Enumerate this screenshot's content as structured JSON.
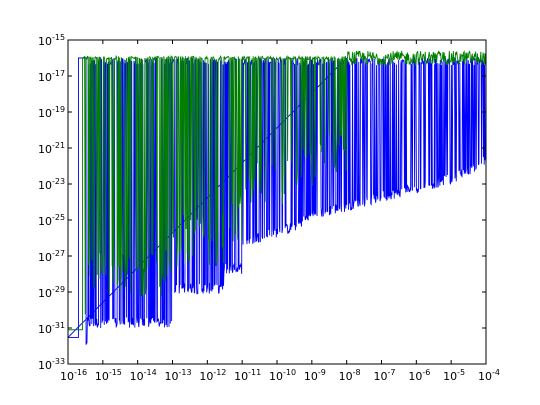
{
  "chart_data": {
    "type": "line",
    "title": "",
    "xlabel": "",
    "ylabel": "",
    "x_scale": "log",
    "y_scale": "log",
    "xlim": [
      1e-16,
      0.0001
    ],
    "ylim": [
      1e-33,
      1e-15
    ],
    "grid": false,
    "legend": "none",
    "x_ticks": [
      {
        "base": "10",
        "exp": "-16",
        "value": 1e-16
      },
      {
        "base": "10",
        "exp": "-15",
        "value": 1e-15
      },
      {
        "base": "10",
        "exp": "-14",
        "value": 1e-14
      },
      {
        "base": "10",
        "exp": "-13",
        "value": 1e-13
      },
      {
        "base": "10",
        "exp": "-12",
        "value": 1e-12
      },
      {
        "base": "10",
        "exp": "-11",
        "value": 1e-11
      },
      {
        "base": "10",
        "exp": "-10",
        "value": 1e-10
      },
      {
        "base": "10",
        "exp": "-9",
        "value": 1e-09
      },
      {
        "base": "10",
        "exp": "-8",
        "value": 1e-08
      },
      {
        "base": "10",
        "exp": "-7",
        "value": 1e-07
      },
      {
        "base": "10",
        "exp": "-6",
        "value": 1e-06
      },
      {
        "base": "10",
        "exp": "-5",
        "value": 1e-05
      },
      {
        "base": "10",
        "exp": "-4",
        "value": 0.0001
      }
    ],
    "y_ticks": [
      {
        "base": "10",
        "exp": "-15",
        "value": 1e-15
      },
      {
        "base": "10",
        "exp": "-17",
        "value": 1e-17
      },
      {
        "base": "10",
        "exp": "-19",
        "value": 1e-19
      },
      {
        "base": "10",
        "exp": "-21",
        "value": 1e-21
      },
      {
        "base": "10",
        "exp": "-23",
        "value": 1e-23
      },
      {
        "base": "10",
        "exp": "-25",
        "value": 1e-25
      },
      {
        "base": "10",
        "exp": "-27",
        "value": 1e-27
      },
      {
        "base": "10",
        "exp": "-29",
        "value": 1e-29
      },
      {
        "base": "10",
        "exp": "-31",
        "value": 1e-31
      },
      {
        "base": "10",
        "exp": "-33",
        "value": 1e-33
      }
    ],
    "series": [
      {
        "color": "#0000ff",
        "description_points": "noisy error floor rising with x",
        "x": [
          1e-16,
          2e-16,
          2e-16,
          3e-16,
          3e-16,
          3.5e-16,
          3.5e-16,
          1e-13,
          1e-13,
          3e-12,
          3e-12,
          1e-11,
          1e-11,
          3e-10,
          1e-09,
          1e-08,
          1e-07,
          1e-06,
          1e-05,
          0.0001
        ],
        "y": [
          3e-32,
          3e-32,
          8e-33,
          8e-33,
          1e-32,
          1e-32,
          1e-31,
          1e-31,
          8e-30,
          8e-30,
          1e-28,
          1e-28,
          3e-27,
          2e-26,
          1e-25,
          3e-25,
          1e-24,
          3e-24,
          1e-23,
          1e-22
        ]
      },
      {
        "color": "#007f00",
        "description_points": "upper band near 1e-16 to 1e-17",
        "x": [
          1e-16,
          3e-15,
          1e-08,
          0.0001
        ],
        "y": [
          1e-16,
          1e-16,
          1e-16,
          1e-16
        ]
      }
    ]
  }
}
